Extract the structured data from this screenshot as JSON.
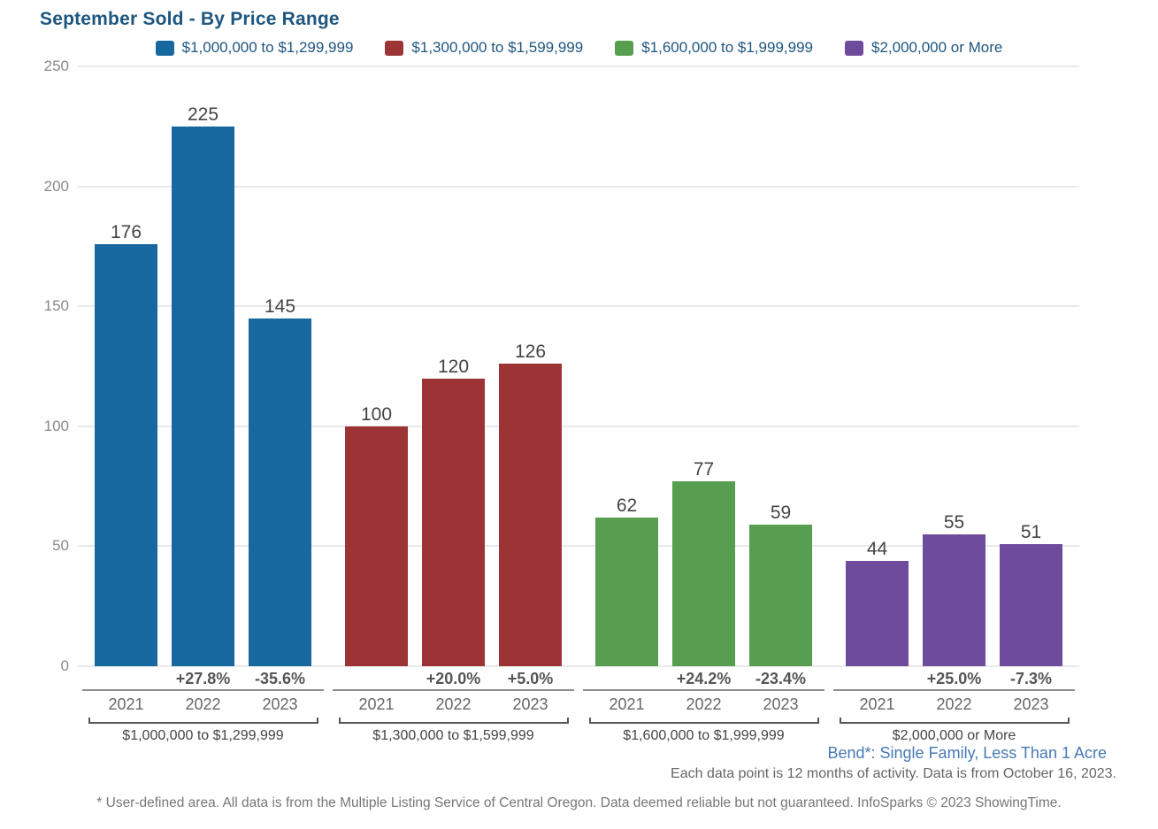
{
  "title": "September Sold - By Price Range",
  "chart_data": {
    "type": "bar",
    "title": "September Sold - By Price Range",
    "categories": [
      "2021",
      "2022",
      "2023"
    ],
    "ylim": [
      0,
      250
    ],
    "yticks": [
      0,
      50,
      100,
      150,
      200,
      250
    ],
    "grid": true,
    "legend_position": "top-center",
    "groups": [
      {
        "label": "$1,000,000 to $1,299,999",
        "color": "#16689E",
        "values": [
          176,
          225,
          145
        ],
        "pct_changes": [
          "",
          "+27.8%",
          "-35.6%"
        ]
      },
      {
        "label": "$1,300,000 to $1,599,999",
        "color": "#9C3334",
        "values": [
          100,
          120,
          126
        ],
        "pct_changes": [
          "",
          "+20.0%",
          "+5.0%"
        ]
      },
      {
        "label": "$1,600,000 to $1,999,999",
        "color": "#579E50",
        "values": [
          62,
          77,
          59
        ],
        "pct_changes": [
          "",
          "+24.2%",
          "-23.4%"
        ]
      },
      {
        "label": "$2,000,000 or More",
        "color": "#6F4B9E",
        "values": [
          44,
          55,
          51
        ],
        "pct_changes": [
          "",
          "+25.0%",
          "-7.3%"
        ]
      }
    ]
  },
  "footer": {
    "area_label": "Bend*: Single Family, Less Than 1 Acre",
    "data_note": "Each data point is 12 months of activity. Data is from October 16, 2023.",
    "disclaimer": "* User-defined area. All data is from the Multiple Listing Service of Central Oregon. Data deemed reliable but not guaranteed. InfoSparks © 2023 ShowingTime."
  },
  "colors": {
    "title_text": "#1D567F",
    "legend_text": "#1D567F",
    "gridline": "#E9E9E9",
    "value_label": "#444444",
    "pct_label": "#555555",
    "year_label": "#666666",
    "area_label_text": "#4779B5",
    "note_text": "#666666",
    "disclaimer_text": "#777777"
  }
}
